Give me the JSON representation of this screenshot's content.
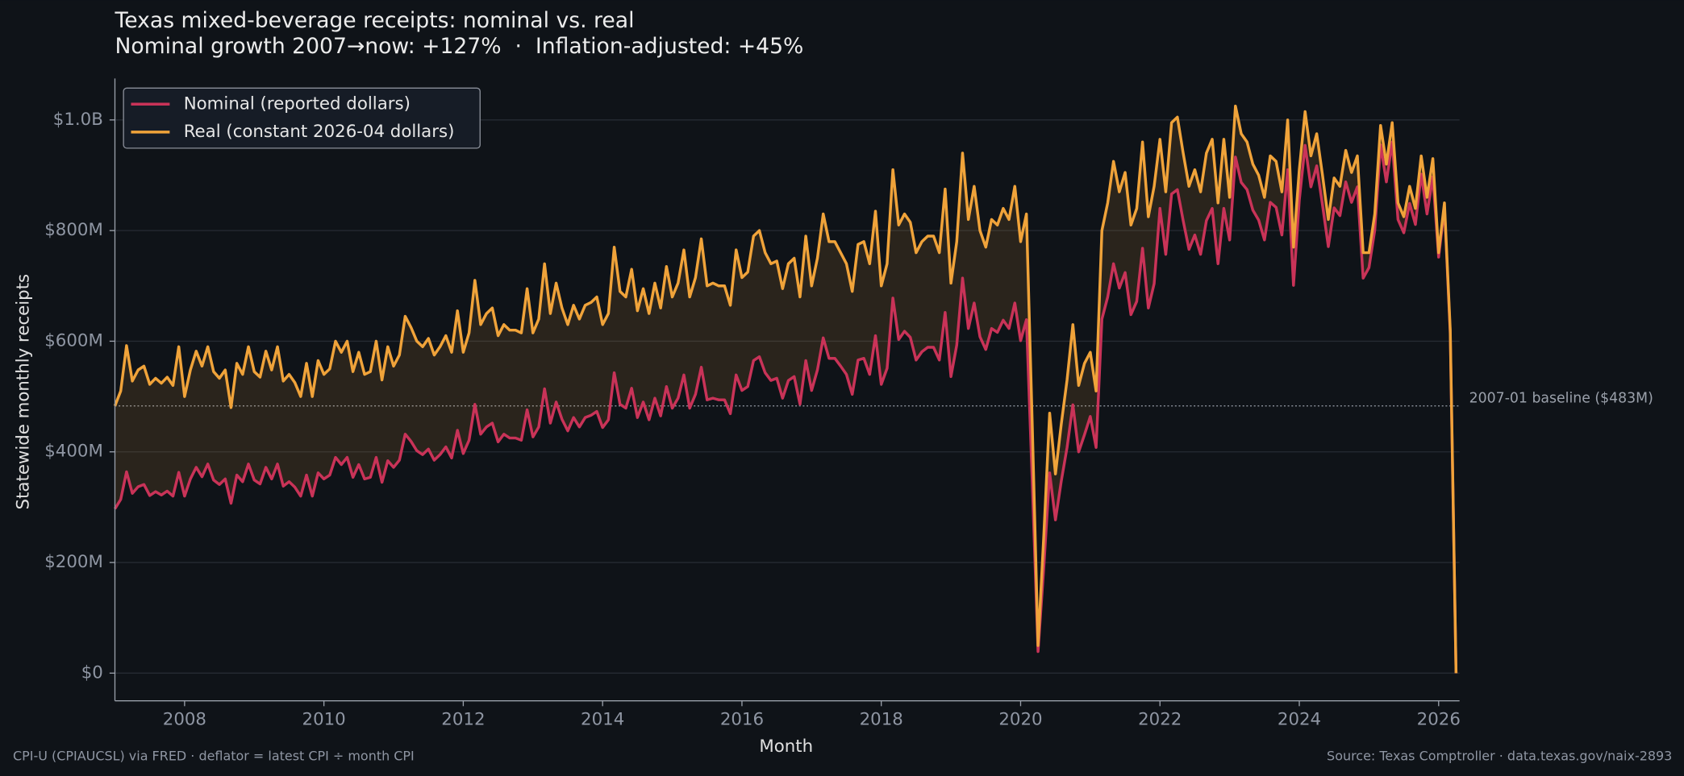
{
  "chart_data": {
    "type": "line",
    "title": "Texas mixed-beverage receipts: nominal vs. real",
    "subtitle": "Nominal growth 2007→now: +127%  ·  Inflation-adjusted: +45%",
    "x_label": "Month",
    "y_label": "Statewide monthly receipts",
    "footnote_left": "CPI-U (CPIAUCSL) via FRED · deflator = latest CPI ÷ month CPI",
    "footnote_right": "Source: Texas Comptroller · data.texas.gov/naix-2893",
    "baseline": {
      "value": 483,
      "label": "2007-01 baseline ($483M)"
    },
    "xlim": [
      2007,
      2026.3
    ],
    "xticks": [
      2008,
      2010,
      2012,
      2014,
      2016,
      2018,
      2020,
      2022,
      2024,
      2026
    ],
    "ylim": [
      -50,
      1075
    ],
    "yticks": [
      {
        "value": 0,
        "label": "$0"
      },
      {
        "value": 200,
        "label": "$200M"
      },
      {
        "value": 400,
        "label": "$400M"
      },
      {
        "value": 600,
        "label": "$600M"
      },
      {
        "value": 800,
        "label": "$800M"
      },
      {
        "value": 1000,
        "label": "$1.0B"
      }
    ],
    "grid": true,
    "legend": "upper left",
    "x": [
      "2007-01",
      "2007-02",
      "2007-03",
      "2007-04",
      "2007-05",
      "2007-06",
      "2007-07",
      "2007-08",
      "2007-09",
      "2007-10",
      "2007-11",
      "2007-12",
      "2008-01",
      "2008-02",
      "2008-03",
      "2008-04",
      "2008-05",
      "2008-06",
      "2008-07",
      "2008-08",
      "2008-09",
      "2008-10",
      "2008-11",
      "2008-12",
      "2009-01",
      "2009-02",
      "2009-03",
      "2009-04",
      "2009-05",
      "2009-06",
      "2009-07",
      "2009-08",
      "2009-09",
      "2009-10",
      "2009-11",
      "2009-12",
      "2010-01",
      "2010-02",
      "2010-03",
      "2010-04",
      "2010-05",
      "2010-06",
      "2010-07",
      "2010-08",
      "2010-09",
      "2010-10",
      "2010-11",
      "2010-12",
      "2011-01",
      "2011-02",
      "2011-03",
      "2011-04",
      "2011-05",
      "2011-06",
      "2011-07",
      "2011-08",
      "2011-09",
      "2011-10",
      "2011-11",
      "2011-12",
      "2012-01",
      "2012-02",
      "2012-03",
      "2012-04",
      "2012-05",
      "2012-06",
      "2012-07",
      "2012-08",
      "2012-09",
      "2012-10",
      "2012-11",
      "2012-12",
      "2013-01",
      "2013-02",
      "2013-03",
      "2013-04",
      "2013-05",
      "2013-06",
      "2013-07",
      "2013-08",
      "2013-09",
      "2013-10",
      "2013-11",
      "2013-12",
      "2014-01",
      "2014-02",
      "2014-03",
      "2014-04",
      "2014-05",
      "2014-06",
      "2014-07",
      "2014-08",
      "2014-09",
      "2014-10",
      "2014-11",
      "2014-12",
      "2015-01",
      "2015-02",
      "2015-03",
      "2015-04",
      "2015-05",
      "2015-06",
      "2015-07",
      "2015-08",
      "2015-09",
      "2015-10",
      "2015-11",
      "2015-12",
      "2016-01",
      "2016-02",
      "2016-03",
      "2016-04",
      "2016-05",
      "2016-06",
      "2016-07",
      "2016-08",
      "2016-09",
      "2016-10",
      "2016-11",
      "2016-12",
      "2017-01",
      "2017-02",
      "2017-03",
      "2017-04",
      "2017-05",
      "2017-06",
      "2017-07",
      "2017-08",
      "2017-09",
      "2017-10",
      "2017-11",
      "2017-12",
      "2018-01",
      "2018-02",
      "2018-03",
      "2018-04",
      "2018-05",
      "2018-06",
      "2018-07",
      "2018-08",
      "2018-09",
      "2018-10",
      "2018-11",
      "2018-12",
      "2019-01",
      "2019-02",
      "2019-03",
      "2019-04",
      "2019-05",
      "2019-06",
      "2019-07",
      "2019-08",
      "2019-09",
      "2019-10",
      "2019-11",
      "2019-12",
      "2020-01",
      "2020-02",
      "2020-03",
      "2020-04",
      "2020-05",
      "2020-06",
      "2020-07",
      "2020-08",
      "2020-09",
      "2020-10",
      "2020-11",
      "2020-12",
      "2021-01",
      "2021-02",
      "2021-03",
      "2021-04",
      "2021-05",
      "2021-06",
      "2021-07",
      "2021-08",
      "2021-09",
      "2021-10",
      "2021-11",
      "2021-12",
      "2022-01",
      "2022-02",
      "2022-03",
      "2022-04",
      "2022-05",
      "2022-06",
      "2022-07",
      "2022-08",
      "2022-09",
      "2022-10",
      "2022-11",
      "2022-12",
      "2023-01",
      "2023-02",
      "2023-03",
      "2023-04",
      "2023-05",
      "2023-06",
      "2023-07",
      "2023-08",
      "2023-09",
      "2023-10",
      "2023-11",
      "2023-12",
      "2024-01",
      "2024-02",
      "2024-03",
      "2024-04",
      "2024-05",
      "2024-06",
      "2024-07",
      "2024-08",
      "2024-09",
      "2024-10",
      "2024-11",
      "2024-12",
      "2025-01",
      "2025-02",
      "2025-03",
      "2025-04",
      "2025-05",
      "2025-06",
      "2025-07",
      "2025-08",
      "2025-09",
      "2025-10",
      "2025-11",
      "2025-12",
      "2026-01",
      "2026-02",
      "2026-03",
      "2026-04"
    ],
    "series": [
      {
        "name": "Nominal (reported dollars)",
        "color": "#c93358",
        "values": [
          297,
          314,
          364,
          325,
          337,
          341,
          321,
          328,
          322,
          329,
          320,
          363,
          320,
          351,
          372,
          355,
          378,
          349,
          341,
          351,
          307,
          358,
          346,
          378,
          349,
          342,
          372,
          351,
          378,
          338,
          346,
          336,
          320,
          358,
          320,
          362,
          351,
          358,
          390,
          377,
          390,
          354,
          377,
          351,
          354,
          390,
          345,
          384,
          372,
          385,
          432,
          419,
          402,
          395,
          405,
          385,
          395,
          409,
          389,
          439,
          397,
          421,
          486,
          432,
          445,
          452,
          418,
          432,
          425,
          425,
          421,
          476,
          427,
          445,
          514,
          452,
          490,
          459,
          438,
          462,
          445,
          462,
          466,
          473,
          444,
          458,
          543,
          486,
          479,
          515,
          462,
          490,
          458,
          497,
          465,
          518,
          479,
          497,
          539,
          479,
          504,
          553,
          494,
          497,
          494,
          494,
          469,
          539,
          511,
          518,
          565,
          572,
          543,
          529,
          533,
          497,
          529,
          536,
          486,
          565,
          511,
          548,
          606,
          569,
          569,
          555,
          540,
          504,
          566,
          569,
          540,
          610,
          522,
          551,
          678,
          603,
          618,
          607,
          566,
          581,
          589,
          589,
          566,
          652,
          536,
          593,
          714,
          623,
          669,
          608,
          585,
          623,
          616,
          638,
          623,
          669,
          601,
          639,
          347,
          39,
          193,
          362,
          277,
          347,
          408,
          485,
          400,
          431,
          464,
          408,
          640,
          680,
          740,
          696,
          724,
          648,
          672,
          768,
          660,
          704,
          840,
          757,
          866,
          874,
          818,
          766,
          792,
          757,
          818,
          840,
          740,
          840,
          783,
          933,
          887,
          874,
          837,
          819,
          783,
          851,
          842,
          792,
          910,
          701,
          855,
          954,
          879,
          917,
          846,
          771,
          841,
          827,
          888,
          851,
          879,
          714,
          733,
          801,
          955,
          888,
          960,
          820,
          796,
          849,
          811,
          902,
          830,
          897,
          752,
          842,
          614,
          0
        ]
      },
      {
        "name": "Real (constant 2026-04 dollars)",
        "color": "#f0a33a",
        "values": [
          483,
          510,
          592,
          528,
          548,
          555,
          522,
          533,
          524,
          535,
          520,
          590,
          500,
          548,
          582,
          555,
          590,
          545,
          533,
          548,
          480,
          560,
          540,
          590,
          545,
          535,
          582,
          548,
          590,
          528,
          540,
          525,
          500,
          560,
          500,
          565,
          540,
          550,
          600,
          580,
          600,
          545,
          580,
          540,
          545,
          600,
          530,
          590,
          555,
          575,
          645,
          625,
          600,
          590,
          605,
          575,
          590,
          610,
          580,
          655,
          580,
          615,
          710,
          630,
          650,
          660,
          610,
          630,
          620,
          620,
          615,
          695,
          615,
          640,
          740,
          650,
          705,
          660,
          630,
          665,
          640,
          665,
          670,
          680,
          630,
          650,
          770,
          690,
          680,
          730,
          655,
          695,
          650,
          705,
          660,
          735,
          680,
          705,
          765,
          680,
          715,
          785,
          700,
          705,
          700,
          700,
          665,
          765,
          715,
          725,
          790,
          800,
          760,
          740,
          745,
          695,
          740,
          750,
          680,
          790,
          700,
          750,
          830,
          780,
          780,
          760,
          740,
          690,
          775,
          780,
          740,
          835,
          700,
          740,
          910,
          810,
          830,
          815,
          760,
          780,
          790,
          790,
          760,
          875,
          705,
          780,
          940,
          820,
          880,
          800,
          770,
          820,
          810,
          840,
          820,
          880,
          780,
          830,
          450,
          50,
          250,
          470,
          360,
          450,
          530,
          630,
          520,
          560,
          580,
          510,
          800,
          850,
          925,
          870,
          905,
          810,
          840,
          960,
          825,
          880,
          965,
          870,
          995,
          1005,
          940,
          880,
          910,
          870,
          940,
          965,
          850,
          965,
          860,
          1025,
          975,
          960,
          920,
          900,
          860,
          935,
          925,
          870,
          1000,
          770,
          910,
          1015,
          935,
          975,
          900,
          820,
          895,
          880,
          945,
          905,
          935,
          760,
          760,
          830,
          990,
          920,
          995,
          850,
          825,
          880,
          840,
          935,
          860,
          930,
          760,
          850,
          620,
          0
        ]
      }
    ]
  }
}
